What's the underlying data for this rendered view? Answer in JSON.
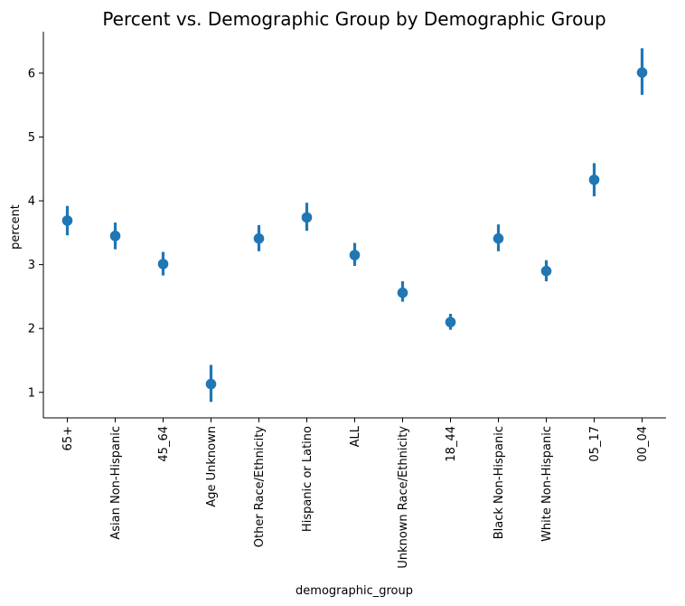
{
  "chart_data": {
    "type": "scatter",
    "title": "Percent vs. Demographic Group by Demographic Group",
    "xlabel": "demographic_group",
    "ylabel": "percent",
    "ylim": [
      0.6,
      6.65
    ],
    "yticks": [
      1,
      2,
      3,
      4,
      5,
      6
    ],
    "grid": false,
    "color": "#1f77b4",
    "categories": [
      "65+",
      "Asian Non-Hispanic",
      "45_64",
      "Age Unknown",
      "Other Race/Ethnicity",
      "Hispanic or Latino",
      "ALL",
      "Unknown Race/Ethnicity",
      "18_44",
      "Black Non-Hispanic",
      "White Non-Hispanic",
      "05_17",
      "00_04"
    ],
    "values": [
      3.69,
      3.45,
      3.01,
      1.13,
      3.41,
      3.74,
      3.15,
      2.56,
      2.1,
      3.41,
      2.9,
      4.33,
      6.01
    ],
    "ci_low": [
      3.46,
      3.24,
      2.83,
      0.85,
      3.21,
      3.53,
      2.98,
      2.42,
      1.98,
      3.21,
      2.74,
      4.07,
      5.66
    ],
    "ci_high": [
      3.92,
      3.66,
      3.2,
      1.43,
      3.62,
      3.97,
      3.34,
      2.74,
      2.23,
      3.63,
      3.07,
      4.59,
      6.39
    ]
  }
}
